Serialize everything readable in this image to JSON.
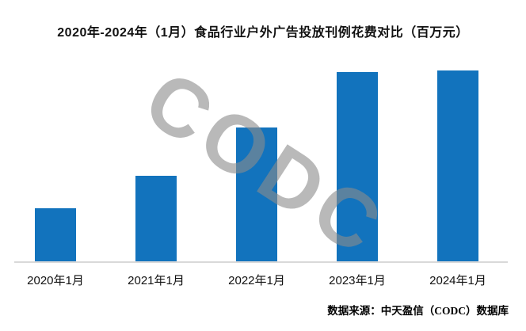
{
  "watermark": "CODC",
  "source_note": "数据来源：中天盈信（CODC）数据库",
  "colors": {
    "bar": "#1273bd",
    "axis_line": "#d9d9d9",
    "watermark": "#8c8c8c",
    "text": "#111111"
  },
  "chart_data": {
    "type": "bar",
    "title": "2020年-2024年（1月）食品行业户外广告投放刊例花费对比（百万元）",
    "categories": [
      "2020年1月",
      "2021年1月",
      "2022年1月",
      "2023年1月",
      "2024年1月"
    ],
    "values": [
      28,
      45,
      70,
      99,
      100
    ],
    "value_note": "no numeric axis or data labels shown; values estimated from bar heights relative to max = 100",
    "xlabel": "",
    "ylabel": "",
    "ylim": [
      0,
      100
    ],
    "grid": false,
    "legend": false,
    "bar_color": "#1273bd",
    "baseline_color": "#d9d9d9",
    "watermark_text": "CODC"
  }
}
